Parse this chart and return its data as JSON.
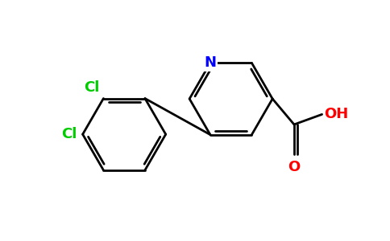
{
  "background_color": "#ffffff",
  "line_color": "#000000",
  "N_color": "#0000ff",
  "Cl_color": "#00cc00",
  "O_color": "#ff0000",
  "line_width": 2.0,
  "figsize": [
    4.84,
    3.0
  ],
  "dpi": 100,
  "xlim": [
    0,
    9.68
  ],
  "ylim": [
    0,
    6.0
  ]
}
